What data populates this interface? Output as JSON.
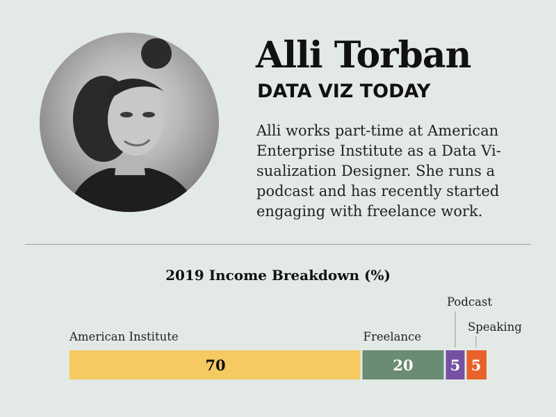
{
  "profile": {
    "name": "Alli Torban",
    "subtitle": "DATA VIZ TODAY",
    "bio_lines": [
      "Alli works part-time at American",
      "Enterprise Institute as a Data Vi-",
      "sualization Designer. She runs a",
      "podcast and has recently started",
      "engaging with freelance work."
    ]
  },
  "chart_data": {
    "type": "bar",
    "orientation": "horizontal-stacked",
    "title": "2019 Income Breakdown (%)",
    "xlim": [
      0,
      100
    ],
    "categories": [
      "American Institute",
      "Freelance",
      "Podcast",
      "Speaking"
    ],
    "values": [
      70,
      20,
      5,
      5
    ],
    "colors": [
      "#f4ca61",
      "#6a8c72",
      "#7551a3",
      "#e8602a"
    ],
    "value_label_colors": [
      "#111111",
      "#ffffff",
      "#ffffff",
      "#ffffff"
    ],
    "grid": false,
    "legend": "none"
  }
}
